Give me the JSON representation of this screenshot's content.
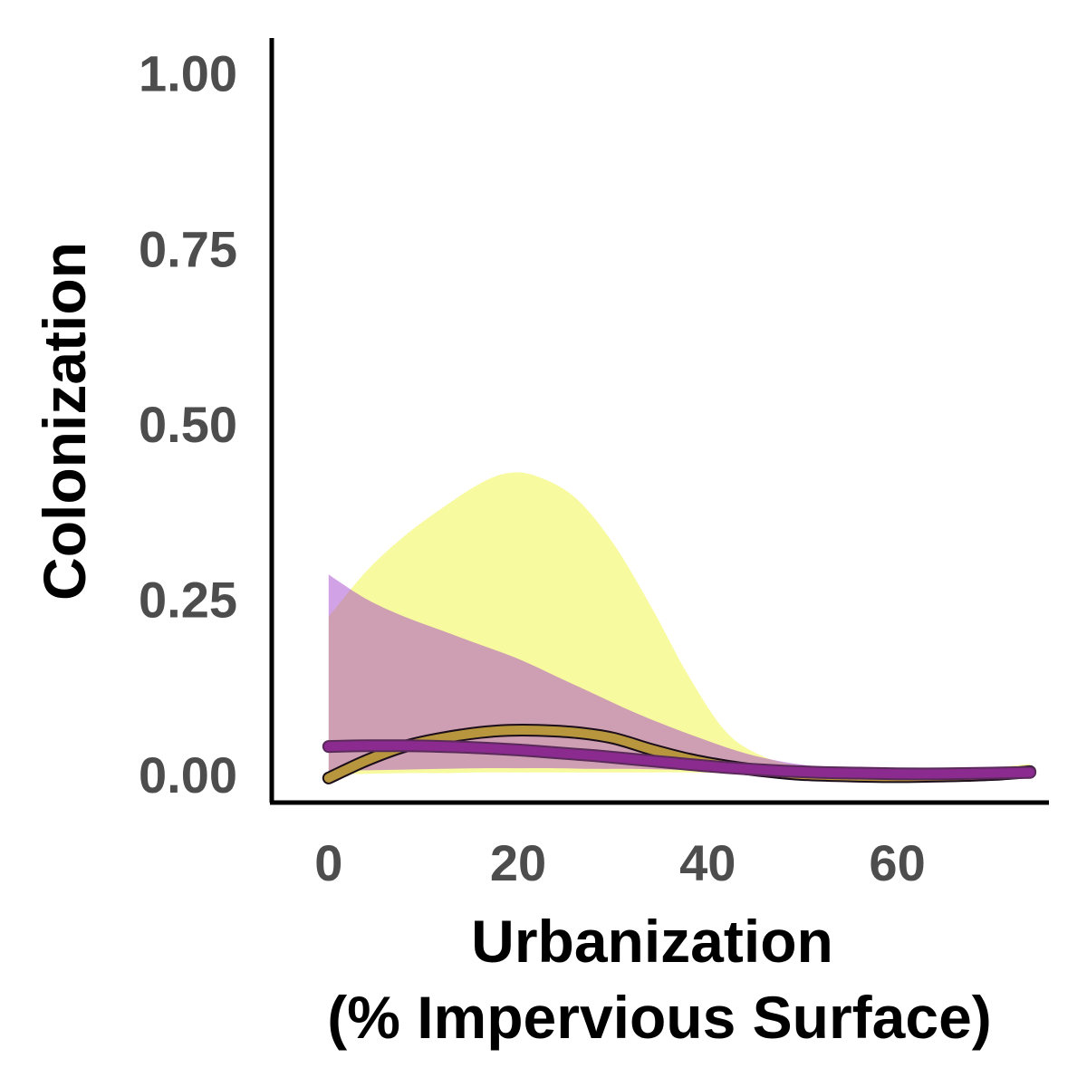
{
  "chart_data": {
    "type": "area",
    "title": "",
    "xlabel_lines": [
      "Urbanization",
      "(% Impervious Surface)"
    ],
    "ylabel": "Colonization",
    "xlim": [
      -6,
      76
    ],
    "ylim": [
      -0.04,
      1.05
    ],
    "x_ticks": [
      0,
      20,
      40,
      60
    ],
    "x_tick_labels": [
      "0",
      "20",
      "40",
      "60"
    ],
    "y_ticks": [
      0,
      0.25,
      0.5,
      0.75,
      1.0
    ],
    "y_tick_labels": [
      "0.00",
      "0.25",
      "0.50",
      "0.75",
      "1.00"
    ],
    "grid": false,
    "legend": "none",
    "series": [
      {
        "fill_color": "#f2f542",
        "line_color": "#b8963e",
        "fill_opacity": 0.5,
        "x": [
          0,
          4,
          8,
          12,
          16,
          19,
          22,
          26,
          30,
          34,
          38,
          42,
          46,
          50,
          55,
          60,
          65,
          70,
          74
        ],
        "mean": [
          -0.005,
          0.02,
          0.04,
          0.052,
          0.06,
          0.063,
          0.063,
          0.06,
          0.052,
          0.036,
          0.022,
          0.012,
          0.005,
          0.0,
          -0.002,
          -0.003,
          -0.002,
          0.0,
          0.004
        ],
        "lower": [
          0.0,
          0.001,
          0.002,
          0.002,
          0.003,
          0.003,
          0.003,
          0.003,
          0.003,
          0.003,
          0.003,
          0.002,
          0.001,
          0.0,
          -0.003,
          -0.004,
          -0.004,
          -0.002,
          0.0
        ],
        "upper": [
          0.225,
          0.29,
          0.34,
          0.38,
          0.415,
          0.43,
          0.425,
          0.395,
          0.33,
          0.24,
          0.14,
          0.06,
          0.025,
          0.012,
          0.008,
          0.008,
          0.008,
          0.01,
          0.015
        ]
      },
      {
        "fill_color": "#9b30c8",
        "line_color": "#8b2a8f",
        "fill_opacity": 0.45,
        "x": [
          0,
          4,
          8,
          12,
          16,
          20,
          24,
          28,
          32,
          36,
          40,
          44,
          48,
          52,
          56,
          60,
          65,
          70,
          74
        ],
        "mean": [
          0.04,
          0.041,
          0.041,
          0.04,
          0.038,
          0.035,
          0.031,
          0.027,
          0.022,
          0.017,
          0.012,
          0.008,
          0.005,
          0.003,
          0.002,
          0.001,
          0.001,
          0.002,
          0.003
        ],
        "lower": [
          0.005,
          0.006,
          0.007,
          0.008,
          0.009,
          0.009,
          0.009,
          0.008,
          0.008,
          0.007,
          0.006,
          0.004,
          0.002,
          0.001,
          0.0,
          0.0,
          0.0,
          0.0,
          0.001
        ],
        "upper": [
          0.285,
          0.25,
          0.225,
          0.205,
          0.185,
          0.165,
          0.14,
          0.115,
          0.09,
          0.068,
          0.048,
          0.03,
          0.018,
          0.011,
          0.008,
          0.006,
          0.006,
          0.008,
          0.01
        ]
      }
    ]
  }
}
